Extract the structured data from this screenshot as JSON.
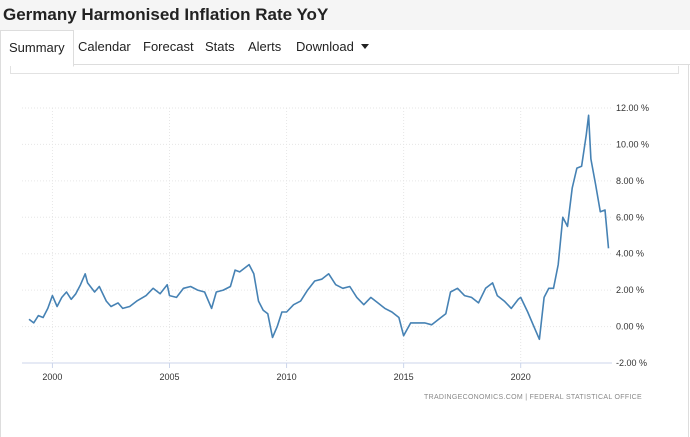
{
  "header": {
    "title": "Germany Harmonised Inflation Rate YoY"
  },
  "tabs": [
    {
      "label": "Summary"
    },
    {
      "label": "Calendar"
    },
    {
      "label": "Forecast"
    },
    {
      "label": "Stats"
    },
    {
      "label": "Alerts"
    },
    {
      "label": "Download"
    }
  ],
  "credit": "TRADINGECONOMICS.COM  |  FEDERAL STATISTICAL OFFICE",
  "colors": {
    "line": "#4682b4",
    "grid": "#e6e6e6",
    "axis": "#ccd6eb"
  },
  "chart_data": {
    "type": "line",
    "title": "",
    "xlabel": "",
    "ylabel": "",
    "x_ticks": [
      "2000",
      "2005",
      "2010",
      "2015",
      "2020"
    ],
    "y_ticks": [
      "12.00 %",
      "10.00 %",
      "8.00 %",
      "6.00 %",
      "4.00 %",
      "2.00 %",
      "0.00 %",
      "-2.00 %"
    ],
    "ylim": [
      -2,
      12
    ],
    "xlim": [
      1998.7,
      2023.9
    ],
    "grid": true,
    "legend": "none",
    "series": [
      {
        "x": [
          1999.0,
          1999.2,
          1999.4,
          1999.6,
          1999.8,
          2000.0,
          2000.2,
          2000.4,
          2000.6,
          2000.8,
          2001.0,
          2001.2,
          2001.4,
          2001.5,
          2001.8,
          2002.0,
          2002.3,
          2002.5,
          2002.8,
          2003.0,
          2003.3,
          2003.6,
          2004.0,
          2004.3,
          2004.6,
          2004.9,
          2005.0,
          2005.3,
          2005.6,
          2005.9,
          2006.2,
          2006.5,
          2006.8,
          2007.0,
          2007.3,
          2007.6,
          2007.8,
          2008.0,
          2008.2,
          2008.4,
          2008.6,
          2008.8,
          2009.0,
          2009.2,
          2009.4,
          2009.6,
          2009.8,
          2010.0,
          2010.3,
          2010.6,
          2010.9,
          2011.2,
          2011.5,
          2011.8,
          2012.1,
          2012.4,
          2012.7,
          2013.0,
          2013.3,
          2013.6,
          2013.9,
          2014.2,
          2014.5,
          2014.8,
          2015.0,
          2015.3,
          2015.6,
          2015.9,
          2016.2,
          2016.5,
          2016.8,
          2017.0,
          2017.3,
          2017.6,
          2017.9,
          2018.2,
          2018.5,
          2018.8,
          2019.0,
          2019.3,
          2019.6,
          2019.9,
          2020.0,
          2020.3,
          2020.6,
          2020.8,
          2021.0,
          2021.2,
          2021.4,
          2021.6,
          2021.8,
          2022.0,
          2022.2,
          2022.4,
          2022.6,
          2022.8,
          2022.9,
          2023.0,
          2023.2,
          2023.4,
          2023.6,
          2023.75
        ],
        "values": [
          0.4,
          0.2,
          0.6,
          0.5,
          1.0,
          1.7,
          1.1,
          1.6,
          1.9,
          1.5,
          1.8,
          2.3,
          2.9,
          2.4,
          1.9,
          2.2,
          1.4,
          1.1,
          1.3,
          1.0,
          1.1,
          1.4,
          1.7,
          2.1,
          1.8,
          2.3,
          1.7,
          1.6,
          2.1,
          2.2,
          2.0,
          1.9,
          1.0,
          1.9,
          2.0,
          2.2,
          3.1,
          3.0,
          3.2,
          3.4,
          2.9,
          1.4,
          0.9,
          0.7,
          -0.6,
          0.0,
          0.8,
          0.8,
          1.2,
          1.4,
          2.0,
          2.5,
          2.6,
          2.9,
          2.3,
          2.1,
          2.2,
          1.6,
          1.2,
          1.6,
          1.3,
          1.0,
          0.8,
          0.5,
          -0.5,
          0.2,
          0.2,
          0.2,
          0.1,
          0.4,
          0.7,
          1.9,
          2.1,
          1.7,
          1.6,
          1.3,
          2.1,
          2.4,
          1.7,
          1.4,
          1.0,
          1.5,
          1.6,
          0.8,
          -0.1,
          -0.7,
          1.6,
          2.1,
          2.1,
          3.4,
          6.0,
          5.5,
          7.6,
          8.7,
          8.8,
          10.5,
          11.6,
          9.2,
          7.8,
          6.3,
          6.4,
          4.3
        ]
      }
    ]
  }
}
